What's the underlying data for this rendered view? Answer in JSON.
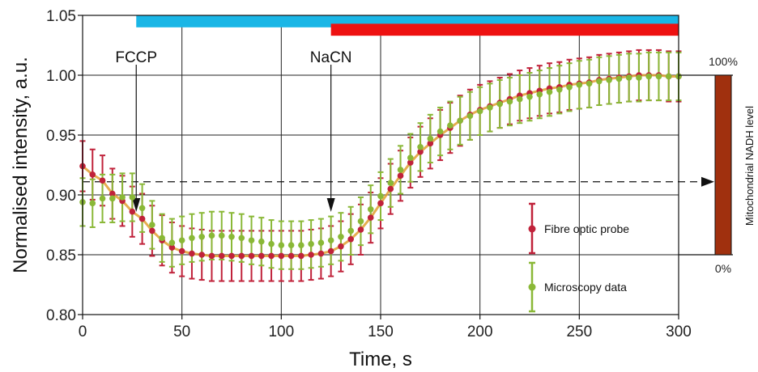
{
  "chart_data": {
    "type": "line",
    "xlabel": "Time, s",
    "ylabel": "Normalised intensity, a.u.",
    "xlim": [
      0,
      300
    ],
    "ylim": [
      0.8,
      1.05
    ],
    "xticks": [
      "0",
      "50",
      "100",
      "150",
      "200",
      "250",
      "300"
    ],
    "yticks": [
      "0.80",
      "0.85",
      "0.90",
      "0.95",
      "1.00",
      "1.05"
    ],
    "grid": true,
    "legend_position": "bottom-right",
    "annotations": [
      {
        "label": "FCCP",
        "x": 27
      },
      {
        "label": "NaCN",
        "x": 125
      }
    ],
    "bars": [
      {
        "color": "#1ab6e6",
        "x_start": 27,
        "x_end": 300,
        "y_start": 1.04,
        "y_end": 1.05
      },
      {
        "color": "#ee1111",
        "x_start": 125,
        "x_end": 300,
        "y_start": 1.033,
        "y_end": 1.043
      }
    ],
    "reference_line": {
      "y": 0.911,
      "style": "dashed"
    },
    "series": [
      {
        "name": "Fibre optic probe",
        "color": "#c0223a",
        "x": [
          0,
          5,
          10,
          15,
          20,
          25,
          30,
          35,
          40,
          45,
          50,
          55,
          60,
          65,
          70,
          75,
          80,
          85,
          90,
          95,
          100,
          105,
          110,
          115,
          120,
          125,
          130,
          135,
          140,
          145,
          150,
          155,
          160,
          165,
          170,
          175,
          180,
          185,
          190,
          195,
          200,
          205,
          210,
          215,
          220,
          225,
          230,
          235,
          240,
          245,
          250,
          255,
          260,
          265,
          270,
          275,
          280,
          285,
          290,
          295,
          300
        ],
        "y": [
          0.924,
          0.917,
          0.912,
          0.901,
          0.895,
          0.886,
          0.88,
          0.87,
          0.862,
          0.856,
          0.853,
          0.851,
          0.85,
          0.849,
          0.849,
          0.849,
          0.849,
          0.849,
          0.849,
          0.849,
          0.849,
          0.849,
          0.849,
          0.85,
          0.851,
          0.853,
          0.857,
          0.863,
          0.871,
          0.881,
          0.893,
          0.905,
          0.916,
          0.927,
          0.936,
          0.943,
          0.95,
          0.956,
          0.962,
          0.967,
          0.971,
          0.974,
          0.977,
          0.98,
          0.983,
          0.985,
          0.987,
          0.989,
          0.99,
          0.992,
          0.993,
          0.994,
          0.996,
          0.997,
          0.998,
          0.999,
          1.0,
          1.0,
          1.0,
          0.999,
          0.999
        ],
        "err": [
          0.021,
          0.021,
          0.021,
          0.021,
          0.021,
          0.021,
          0.021,
          0.021,
          0.021,
          0.021,
          0.021,
          0.021,
          0.021,
          0.021,
          0.021,
          0.021,
          0.021,
          0.021,
          0.021,
          0.021,
          0.021,
          0.021,
          0.021,
          0.021,
          0.021,
          0.021,
          0.021,
          0.021,
          0.021,
          0.021,
          0.021,
          0.021,
          0.021,
          0.021,
          0.021,
          0.021,
          0.021,
          0.021,
          0.021,
          0.021,
          0.021,
          0.021,
          0.021,
          0.021,
          0.021,
          0.021,
          0.021,
          0.021,
          0.021,
          0.021,
          0.021,
          0.021,
          0.021,
          0.021,
          0.021,
          0.021,
          0.021,
          0.021,
          0.021,
          0.021,
          0.021
        ]
      },
      {
        "name": "Microscopy data",
        "color": "#8ab837",
        "x": [
          0,
          5,
          10,
          15,
          20,
          25,
          30,
          35,
          40,
          45,
          50,
          55,
          60,
          65,
          70,
          75,
          80,
          85,
          90,
          95,
          100,
          105,
          110,
          115,
          120,
          125,
          130,
          135,
          140,
          145,
          150,
          155,
          160,
          165,
          170,
          175,
          180,
          185,
          190,
          195,
          200,
          205,
          210,
          215,
          220,
          225,
          230,
          235,
          240,
          245,
          250,
          255,
          260,
          265,
          270,
          275,
          280,
          285,
          290,
          295,
          300
        ],
        "y": [
          0.894,
          0.893,
          0.897,
          0.897,
          0.898,
          0.898,
          0.889,
          0.875,
          0.864,
          0.86,
          0.862,
          0.864,
          0.865,
          0.866,
          0.866,
          0.865,
          0.864,
          0.862,
          0.861,
          0.859,
          0.858,
          0.858,
          0.858,
          0.859,
          0.86,
          0.862,
          0.865,
          0.87,
          0.878,
          0.888,
          0.899,
          0.91,
          0.921,
          0.931,
          0.94,
          0.947,
          0.953,
          0.958,
          0.962,
          0.966,
          0.97,
          0.973,
          0.976,
          0.978,
          0.98,
          0.982,
          0.984,
          0.986,
          0.988,
          0.99,
          0.992,
          0.993,
          0.995,
          0.996,
          0.997,
          0.998,
          0.998,
          0.999,
          0.999,
          0.999,
          0.999
        ],
        "err": [
          0.02,
          0.02,
          0.02,
          0.02,
          0.02,
          0.02,
          0.02,
          0.02,
          0.02,
          0.02,
          0.02,
          0.02,
          0.02,
          0.02,
          0.02,
          0.02,
          0.02,
          0.02,
          0.02,
          0.02,
          0.02,
          0.02,
          0.02,
          0.02,
          0.02,
          0.02,
          0.02,
          0.02,
          0.02,
          0.02,
          0.02,
          0.02,
          0.02,
          0.02,
          0.02,
          0.02,
          0.02,
          0.02,
          0.02,
          0.02,
          0.02,
          0.02,
          0.02,
          0.02,
          0.02,
          0.02,
          0.02,
          0.02,
          0.02,
          0.02,
          0.02,
          0.02,
          0.02,
          0.02,
          0.02,
          0.02,
          0.02,
          0.02,
          0.02,
          0.02,
          0.02
        ]
      }
    ],
    "side_scale": {
      "title": "Mitochondrial NADH level",
      "top_label": "100%",
      "bottom_label": "0%",
      "bar_color": "#a0300e",
      "level": 0.911
    }
  }
}
